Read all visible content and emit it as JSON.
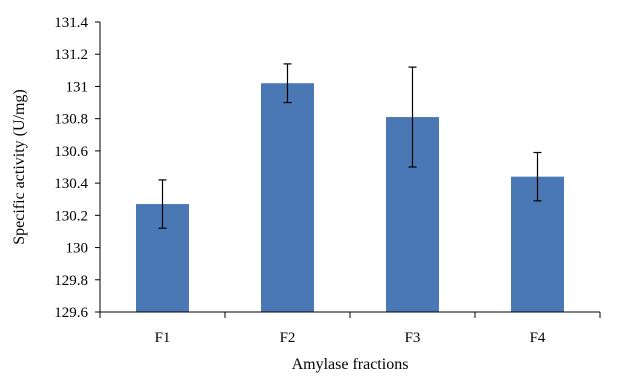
{
  "chart_data": {
    "type": "bar",
    "categories": [
      "F1",
      "F2",
      "F3",
      "F4"
    ],
    "values": [
      130.27,
      131.02,
      130.81,
      130.44
    ],
    "error_low": [
      130.12,
      130.9,
      130.5,
      130.29
    ],
    "error_high": [
      130.42,
      131.14,
      131.12,
      130.59
    ],
    "yticks": [
      "129.6",
      "129.8",
      "130",
      "130.2",
      "130.4",
      "130.6",
      "130.8",
      "131",
      "131.2",
      "131.4"
    ],
    "xlabel": "Amylase fractions",
    "ylabel": "Specific activity (U/mg)",
    "ylim": [
      129.6,
      131.4
    ],
    "grid": false,
    "bar_color": "#4a78b4",
    "legend": "none"
  }
}
